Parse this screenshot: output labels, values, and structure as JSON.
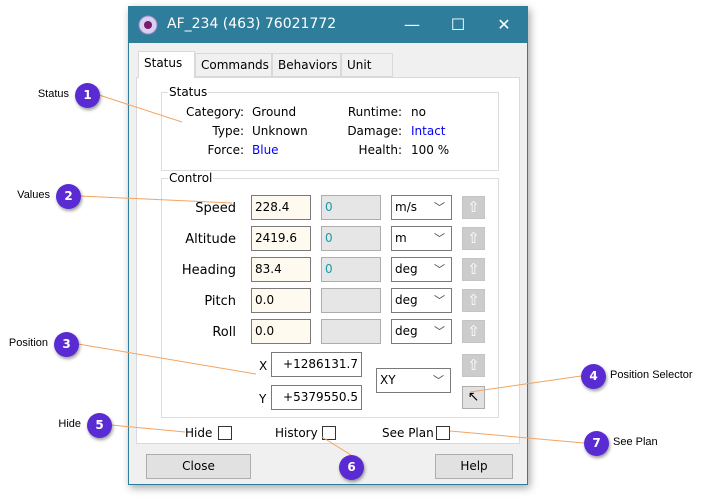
{
  "window": {
    "title": "AF_234 (463) 76021772",
    "minimize": "—",
    "maximize": "☐",
    "close": "✕"
  },
  "tabs": [
    {
      "label": "Status"
    },
    {
      "label": "Commands"
    },
    {
      "label": "Behaviors"
    },
    {
      "label": "Unit"
    }
  ],
  "status": {
    "legend": "Status",
    "category_label": "Category:",
    "category": "Ground",
    "type_label": "Type:",
    "type": "Unknown",
    "force_label": "Force:",
    "force": "Blue",
    "runtime_label": "Runtime:",
    "runtime": "no",
    "damage_label": "Damage:",
    "damage": "Intact",
    "health_label": "Health:",
    "health": "100 %"
  },
  "control": {
    "legend": "Control",
    "rows": [
      {
        "label": "Speed",
        "value": "228.4",
        "target": "0",
        "unit": "m/s"
      },
      {
        "label": "Altitude",
        "value": "2419.6",
        "target": "0",
        "unit": "m"
      },
      {
        "label": "Heading",
        "value": "83.4",
        "target": "0",
        "unit": "deg"
      },
      {
        "label": "Pitch",
        "value": "0.0",
        "target": "",
        "unit": "deg"
      },
      {
        "label": "Roll",
        "value": "0.0",
        "target": "",
        "unit": "deg"
      }
    ],
    "x_label": "X",
    "x": "+1286131.7",
    "y_label": "Y",
    "y": "+5379550.5",
    "coord_mode": "XY"
  },
  "checks": {
    "hide": "Hide",
    "history": "History",
    "see_plan": "See Plan"
  },
  "buttons": {
    "close": "Close",
    "help": "Help"
  },
  "callouts": [
    {
      "num": "1",
      "label": "Status"
    },
    {
      "num": "2",
      "label": "Values"
    },
    {
      "num": "3",
      "label": "Position"
    },
    {
      "num": "4",
      "label": "Position Selector"
    },
    {
      "num": "5",
      "label": "Hide"
    },
    {
      "num": "6",
      "label": ""
    },
    {
      "num": "7",
      "label": "See Plan"
    }
  ],
  "colors": {
    "titlebar": "#2e7d9a",
    "badge": "#5a2bd3",
    "callout_line": "#f4a460",
    "link": "#0000ff"
  }
}
